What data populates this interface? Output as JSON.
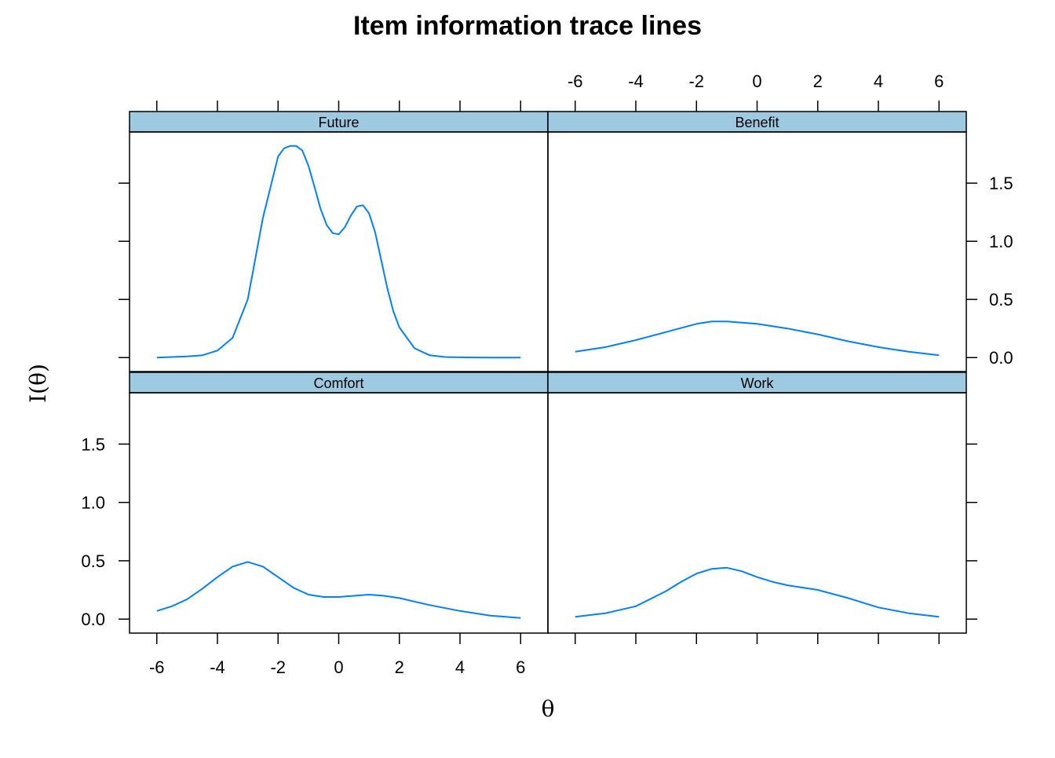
{
  "chart_data": {
    "type": "line",
    "title": "Item information trace lines",
    "xlabel": "θ",
    "ylabel": "I(θ)",
    "xlim": [
      -6.9,
      6.9
    ],
    "ylim": [
      -0.12,
      1.94
    ],
    "x_ticks": [
      -6,
      -4,
      -2,
      0,
      2,
      4,
      6
    ],
    "y_ticks": [
      0.0,
      0.5,
      1.0,
      1.5
    ],
    "x_tick_labels": [
      "-6",
      "-4",
      "-2",
      "0",
      "2",
      "4",
      "6"
    ],
    "y_tick_labels": [
      "0.0",
      "0.5",
      "1.0",
      "1.5"
    ],
    "line_color": "#0080ff",
    "strip_color": "#9ecae1",
    "grid": false,
    "legend": "none",
    "panels": [
      {
        "name": "Future",
        "x": [
          -6,
          -5.5,
          -5,
          -4.5,
          -4,
          -3.5,
          -3,
          -2.5,
          -2,
          -1.8,
          -1.6,
          -1.4,
          -1.2,
          -1,
          -0.8,
          -0.6,
          -0.4,
          -0.2,
          0,
          0.2,
          0.4,
          0.6,
          0.8,
          1,
          1.2,
          1.4,
          1.6,
          1.8,
          2,
          2.5,
          3,
          3.5,
          4,
          4.5,
          5,
          5.5,
          6
        ],
        "y": [
          0.0,
          0.005,
          0.01,
          0.02,
          0.06,
          0.17,
          0.5,
          1.2,
          1.73,
          1.8,
          1.82,
          1.82,
          1.78,
          1.65,
          1.47,
          1.28,
          1.14,
          1.07,
          1.06,
          1.12,
          1.22,
          1.3,
          1.31,
          1.24,
          1.08,
          0.84,
          0.6,
          0.4,
          0.26,
          0.08,
          0.02,
          0.005,
          0.002,
          0.001,
          0.0,
          0.0,
          0.0
        ]
      },
      {
        "name": "Benefit",
        "x": [
          -6,
          -5,
          -4,
          -3,
          -2,
          -1.5,
          -1,
          0,
          1,
          2,
          3,
          4,
          5,
          6
        ],
        "y": [
          0.05,
          0.09,
          0.15,
          0.22,
          0.29,
          0.31,
          0.31,
          0.29,
          0.25,
          0.2,
          0.14,
          0.09,
          0.05,
          0.02
        ]
      },
      {
        "name": "Comfort",
        "x": [
          -6,
          -5.5,
          -5,
          -4.5,
          -4,
          -3.5,
          -3,
          -2.5,
          -2,
          -1.5,
          -1,
          -0.5,
          0,
          0.5,
          1,
          1.5,
          2,
          3,
          4,
          5,
          6
        ],
        "y": [
          0.07,
          0.11,
          0.17,
          0.26,
          0.36,
          0.45,
          0.49,
          0.45,
          0.36,
          0.27,
          0.21,
          0.19,
          0.19,
          0.2,
          0.21,
          0.2,
          0.18,
          0.12,
          0.07,
          0.03,
          0.01
        ]
      },
      {
        "name": "Work",
        "x": [
          -6,
          -5,
          -4,
          -3,
          -2.5,
          -2,
          -1.5,
          -1,
          -0.5,
          0,
          0.5,
          1,
          2,
          3,
          4,
          5,
          6
        ],
        "y": [
          0.02,
          0.05,
          0.11,
          0.24,
          0.32,
          0.39,
          0.43,
          0.44,
          0.41,
          0.36,
          0.32,
          0.29,
          0.25,
          0.18,
          0.1,
          0.05,
          0.02
        ]
      }
    ]
  }
}
